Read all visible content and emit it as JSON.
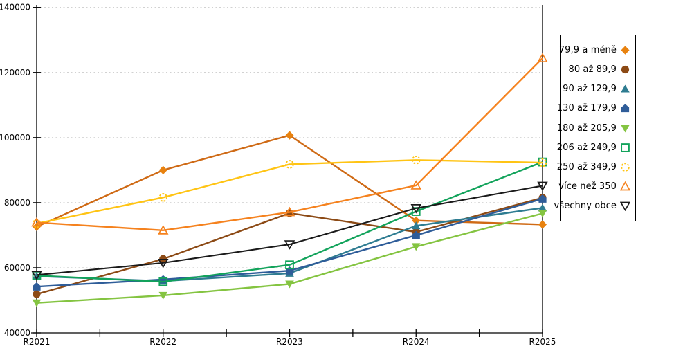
{
  "chart_data": {
    "type": "line",
    "title": "",
    "xlabel": "",
    "ylabel": "",
    "x_categories": [
      "R2021",
      "R2022",
      "R2023",
      "R2024",
      "R2025"
    ],
    "y_ticks": [
      40000,
      60000,
      80000,
      100000,
      120000,
      140000
    ],
    "ylim": [
      40000,
      140000
    ],
    "grid": "horizontal-dashed",
    "gridline_color": "#c2c2c2",
    "axis_color": "#000000",
    "legend_position": "right-outside",
    "series": [
      {
        "name": "79,9 a méně",
        "marker": "diamond-filled",
        "color": "#CF6A15",
        "marker_color": "#E8820F",
        "values": [
          72600,
          90000,
          100700,
          74500,
          73300
        ]
      },
      {
        "name": "80 až 89,9",
        "marker": "circle-filled",
        "color": "#8C4A15",
        "values": [
          51900,
          62700,
          76800,
          71000,
          81500
        ]
      },
      {
        "name": "90 až 129,9",
        "marker": "triangle-up-filled",
        "color": "#2E7C91",
        "values": [
          57400,
          55900,
          58300,
          72900,
          78400
        ]
      },
      {
        "name": "130 až 179,9",
        "marker": "pentagon-filled",
        "color": "#2F5D99",
        "values": [
          54200,
          56400,
          59100,
          70000,
          81200
        ]
      },
      {
        "name": "180 až 205,9",
        "marker": "triangle-down-filled",
        "color": "#84C441",
        "values": [
          49200,
          51500,
          55000,
          66500,
          76700
        ]
      },
      {
        "name": "206 až 249,9",
        "marker": "square-outline",
        "color": "#12A35B",
        "values": [
          57600,
          55700,
          60900,
          77300,
          92500
        ]
      },
      {
        "name": "250 až 349,9",
        "marker": "circle-outline-dashed",
        "color": "#FFC414",
        "values": [
          73600,
          81600,
          91800,
          93100,
          92300
        ]
      },
      {
        "name": "více než 350",
        "marker": "triangle-up-outline",
        "color": "#F5821E",
        "values": [
          73900,
          71500,
          77100,
          85300,
          124400
        ]
      },
      {
        "name": "všechny obce",
        "marker": "triangle-down-outline",
        "color": "#1A1A1A",
        "values": [
          57800,
          61500,
          67200,
          78300,
          85200
        ]
      }
    ]
  }
}
